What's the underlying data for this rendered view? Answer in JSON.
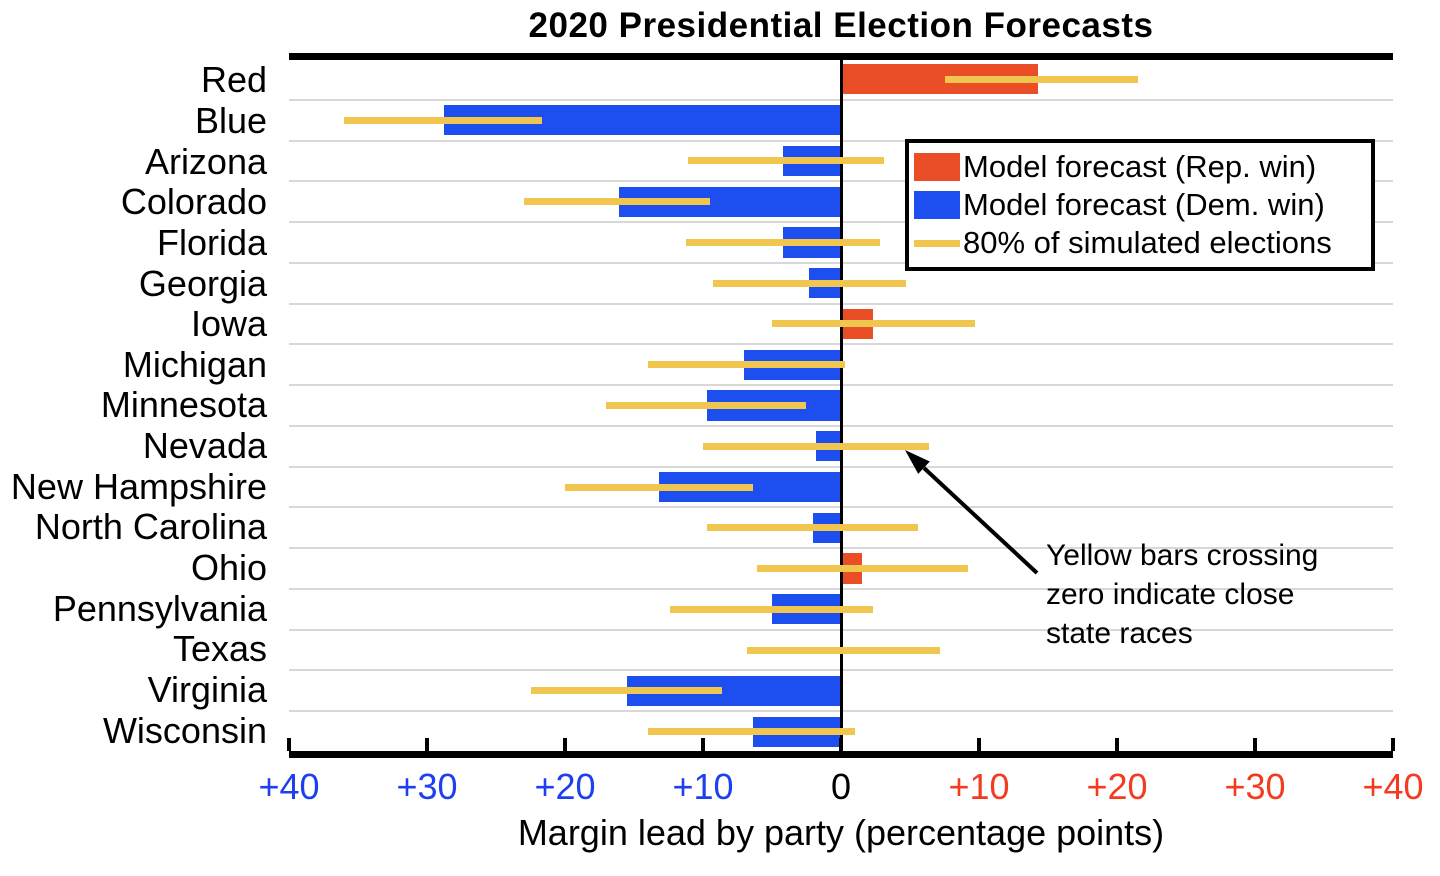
{
  "title": "2020 Presidential Election Forecasts",
  "x_axis": {
    "label": "Margin lead by party (percentage points)",
    "ticks": [
      {
        "value": -40,
        "label": "+40",
        "party": "dem"
      },
      {
        "value": -30,
        "label": "+30",
        "party": "dem"
      },
      {
        "value": -20,
        "label": "+20",
        "party": "dem"
      },
      {
        "value": -10,
        "label": "+10",
        "party": "dem"
      },
      {
        "value": 0,
        "label": "0",
        "party": "neutral"
      },
      {
        "value": 10,
        "label": "+10",
        "party": "rep"
      },
      {
        "value": 20,
        "label": "+20",
        "party": "rep"
      },
      {
        "value": 30,
        "label": "+30",
        "party": "rep"
      },
      {
        "value": 40,
        "label": "+40",
        "party": "rep"
      }
    ]
  },
  "legend": {
    "items": [
      {
        "swatch": "rep-bar",
        "label": "Model forecast (Rep. win)"
      },
      {
        "swatch": "dem-bar",
        "label": "Model forecast (Dem. win)"
      },
      {
        "swatch": "sim-line",
        "label": "80% of simulated elections"
      }
    ]
  },
  "annotation": {
    "lines": [
      "Yellow bars crossing",
      "zero indicate close",
      "state races"
    ]
  },
  "colors": {
    "rep_bar": "#E94E26",
    "dem_bar": "#1D4EF0",
    "band": "#F1C64F",
    "tick_dem": "#1E3FF0",
    "tick_rep": "#F43B20",
    "neutral": "#000000",
    "grid": "#D8D8D8"
  },
  "chart_data": {
    "type": "bar",
    "orientation": "horizontal",
    "title": "2020 Presidential Election Forecasts",
    "xlabel": "Margin lead by party (percentage points)",
    "xlim": [
      -40,
      40
    ],
    "x_tick_values": [
      -40,
      -30,
      -20,
      -10,
      0,
      10,
      20,
      30,
      40
    ],
    "grid": "horizontal category separators only",
    "legend_position": "upper right inside plot",
    "rows": [
      {
        "category": "Red",
        "forecast_margin": 14.3,
        "band80": [
          7.5,
          21.5
        ]
      },
      {
        "category": "Blue",
        "forecast_margin": -28.8,
        "band80": [
          -36,
          -21.7
        ]
      },
      {
        "category": "Arizona",
        "forecast_margin": -4.2,
        "band80": [
          -11.1,
          3.1
        ]
      },
      {
        "category": "Colorado",
        "forecast_margin": -16.1,
        "band80": [
          -23,
          -9.5
        ]
      },
      {
        "category": "Florida",
        "forecast_margin": -4.2,
        "band80": [
          -11.2,
          2.8
        ]
      },
      {
        "category": "Georgia",
        "forecast_margin": -2.3,
        "band80": [
          -9.3,
          4.7
        ]
      },
      {
        "category": "Iowa",
        "forecast_margin": 2.3,
        "band80": [
          -5,
          9.7
        ]
      },
      {
        "category": "Michigan",
        "forecast_margin": -7,
        "band80": [
          -14,
          0.3
        ]
      },
      {
        "category": "Minnesota",
        "forecast_margin": -9.7,
        "band80": [
          -17,
          -2.5
        ]
      },
      {
        "category": "Nevada",
        "forecast_margin": -1.8,
        "band80": [
          -10,
          6.4
        ]
      },
      {
        "category": "New Hampshire",
        "forecast_margin": -13.2,
        "band80": [
          -20,
          -6.4
        ]
      },
      {
        "category": "North Carolina",
        "forecast_margin": -2,
        "band80": [
          -9.7,
          5.6
        ]
      },
      {
        "category": "Ohio",
        "forecast_margin": 1.5,
        "band80": [
          -6.1,
          9.2
        ]
      },
      {
        "category": "Pennsylvania",
        "forecast_margin": -5,
        "band80": [
          -12.4,
          2.3
        ]
      },
      {
        "category": "Texas",
        "forecast_margin": 0,
        "band80": [
          -6.8,
          7.2
        ]
      },
      {
        "category": "Virginia",
        "forecast_margin": -15.5,
        "band80": [
          -22.5,
          -8.6
        ]
      },
      {
        "category": "Wisconsin",
        "forecast_margin": -6.4,
        "band80": [
          -14,
          1
        ]
      }
    ]
  }
}
